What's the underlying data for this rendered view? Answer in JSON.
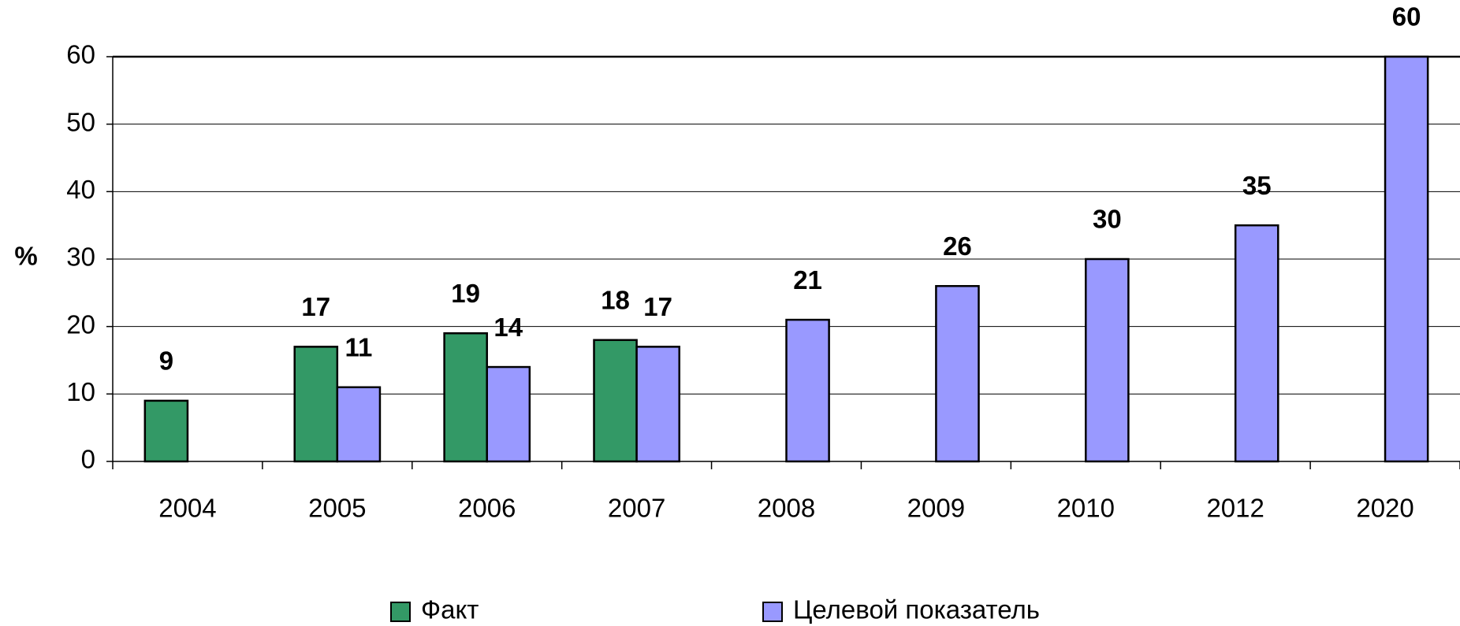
{
  "chart_data": {
    "type": "bar",
    "y_label": "%",
    "categories": [
      "2004",
      "2005",
      "2006",
      "2007",
      "2008",
      "2009",
      "2010",
      "2012",
      "2020"
    ],
    "series": [
      {
        "name": "Факт",
        "color": "#339966",
        "values": [
          9,
          17,
          19,
          18,
          null,
          null,
          null,
          null,
          null
        ]
      },
      {
        "name": "Целевой показатель",
        "color": "#9999ff",
        "values": [
          null,
          11,
          14,
          17,
          21,
          26,
          30,
          35,
          60
        ]
      }
    ],
    "ylim": [
      0,
      60
    ],
    "yticks": [
      0,
      10,
      20,
      30,
      40,
      50,
      60
    ],
    "grid": true,
    "legend": "bottom"
  }
}
